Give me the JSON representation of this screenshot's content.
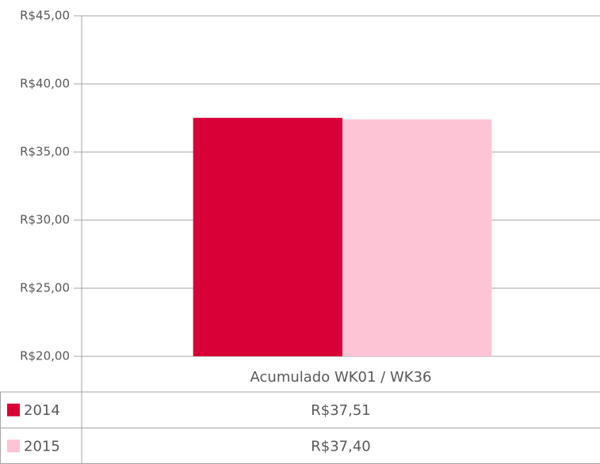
{
  "chart_data": {
    "type": "bar",
    "categories": [
      "Acumulado WK01 / WK36"
    ],
    "series": [
      {
        "name": "2014",
        "color": "#d80036",
        "values": [
          37.51
        ],
        "value_labels": [
          "R$37,51"
        ]
      },
      {
        "name": "2015",
        "color": "#fcc4d4",
        "values": [
          37.4
        ],
        "value_labels": [
          "R$37,40"
        ]
      }
    ],
    "ylim": [
      20,
      45
    ],
    "yticks": [
      {
        "value": 20,
        "label": "R$20,00"
      },
      {
        "value": 25,
        "label": "R$25,00"
      },
      {
        "value": 30,
        "label": "R$30,00"
      },
      {
        "value": 35,
        "label": "R$35,00"
      },
      {
        "value": 40,
        "label": "R$40,00"
      },
      {
        "value": 45,
        "label": "R$45,00"
      }
    ],
    "grid": true,
    "data_table": true
  }
}
